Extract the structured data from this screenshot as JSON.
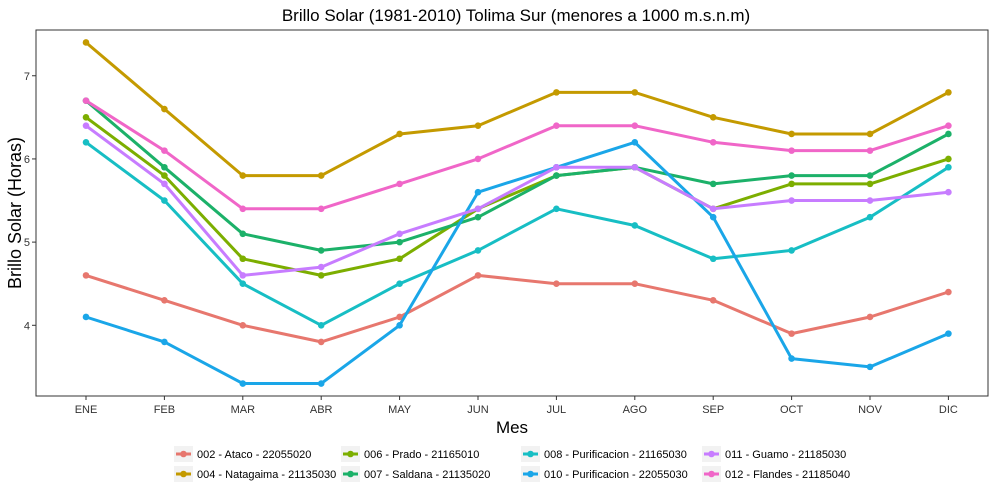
{
  "chart_data": {
    "type": "line",
    "title": "Brillo Solar (1981-2010) Tolima Sur (menores a 1000 m.s.n.m)",
    "xlabel": "Mes",
    "ylabel": "Brillo Solar (Horas)",
    "categories": [
      "ENE",
      "FEB",
      "MAR",
      "ABR",
      "MAY",
      "JUN",
      "JUL",
      "AGO",
      "SEP",
      "OCT",
      "NOV",
      "DIC"
    ],
    "ylim": [
      3.15,
      7.55
    ],
    "yticks": [
      4,
      5,
      6,
      7
    ],
    "grid": false,
    "legend_position": "bottom",
    "series": [
      {
        "name": "002 - Ataco - 22055020",
        "color": "#E7776E",
        "values": [
          4.6,
          4.3,
          4.0,
          3.8,
          4.1,
          4.6,
          4.5,
          4.5,
          4.3,
          3.9,
          4.1,
          4.4
        ]
      },
      {
        "name": "004 - Natagaima - 21135030",
        "color": "#C49A00",
        "values": [
          7.4,
          6.6,
          5.8,
          5.8,
          6.3,
          6.4,
          6.8,
          6.8,
          6.5,
          6.3,
          6.3,
          6.8
        ]
      },
      {
        "name": "006 - Prado - 21165010",
        "color": "#7CAE00",
        "values": [
          6.5,
          5.8,
          4.8,
          4.6,
          4.8,
          5.4,
          5.8,
          5.9,
          5.4,
          5.7,
          5.7,
          6.0
        ]
      },
      {
        "name": "007 - Saldana - 21135020",
        "color": "#1CB169",
        "values": [
          6.7,
          5.9,
          5.1,
          4.9,
          5.0,
          5.3,
          5.8,
          5.9,
          5.7,
          5.8,
          5.8,
          6.3
        ]
      },
      {
        "name": "008 - Purificacion - 21165030",
        "color": "#17BEC4",
        "values": [
          6.2,
          5.5,
          4.5,
          4.0,
          4.5,
          4.9,
          5.4,
          5.2,
          4.8,
          4.9,
          5.3,
          5.9
        ]
      },
      {
        "name": "010 - Purificacion - 22055030",
        "color": "#1AA6E8",
        "values": [
          4.1,
          3.8,
          3.3,
          3.3,
          4.0,
          5.6,
          5.9,
          6.2,
          5.3,
          3.6,
          3.5,
          3.9
        ]
      },
      {
        "name": "011 - Guamo - 21185030",
        "color": "#C77CFF",
        "values": [
          6.4,
          5.7,
          4.6,
          4.7,
          5.1,
          5.4,
          5.9,
          5.9,
          5.4,
          5.5,
          5.5,
          5.6
        ]
      },
      {
        "name": "012 - Flandes - 21185040",
        "color": "#F066C8",
        "values": [
          6.7,
          6.1,
          5.4,
          5.4,
          5.7,
          6.0,
          6.4,
          6.4,
          6.2,
          6.1,
          6.1,
          6.4
        ]
      }
    ]
  }
}
